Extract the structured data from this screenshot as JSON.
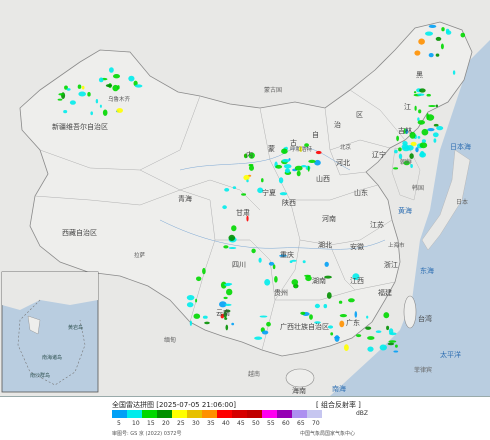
{
  "map": {
    "labels": {
      "xinjiang": "新疆维吾尔自治区",
      "xizang": "西藏自治区",
      "qinghai": "青海",
      "neimenggu_1": "内",
      "neimenggu_2": "蒙",
      "neimenggu_3": "古",
      "neimenggu_4": "自",
      "neimenggu_5": "治",
      "neimenggu_6": "区",
      "heilongjiang_1": "黑",
      "heilongjiang_2": "江",
      "jilin": "吉林",
      "liaoning": "辽宁",
      "gansu": "甘肃",
      "shaanxi": "陕西",
      "shanxi": "山西",
      "hebei": "河北",
      "shandong": "山东",
      "henan": "河南",
      "hubei": "湖北",
      "hunan": "湖南",
      "sichuan": "四川",
      "chongqing": "重庆",
      "guizhou": "贵州",
      "yunnan": "云南",
      "guangxi": "广西壮族自治区",
      "guangdong": "广东",
      "fujian": "福建",
      "jiangxi": "江西",
      "zhejiang": "浙江",
      "jiangsu": "江苏",
      "anhui": "安徽",
      "ningxia": "宁夏",
      "taiwan": "台湾",
      "hainan": "海南",
      "huanghai": "黄海",
      "donghai": "东海",
      "riben_hai": "日本海",
      "taipingyang": "太平洋",
      "nanhai": "南海",
      "mengguo": "蒙古国",
      "chaoxian": "朝鲜",
      "hanguo": "韩国",
      "riben": "日本",
      "feilvbin": "菲律宾",
      "yuenan": "越南",
      "miandian": "缅甸",
      "xinjiang_wlmq": "乌鲁木齐",
      "lasa": "拉萨",
      "beijing": "北京",
      "shanghai": "上海市",
      "huhehaote": "呼和浩特",
      "inset_nanhai": "南海诸岛",
      "inset_huangyan": "黄岩岛",
      "inset_nansha": "南沙群岛"
    }
  },
  "legend": {
    "title": "全国雷达拼图 [2025-07-05 21:06:00]",
    "product": "[ 组合反射率 ]",
    "unit": "dBZ",
    "ticks": [
      "5",
      "10",
      "15",
      "20",
      "25",
      "30",
      "35",
      "40",
      "45",
      "50",
      "55",
      "60",
      "65",
      "70"
    ],
    "colors": [
      "#01a0f6",
      "#00ecec",
      "#00d800",
      "#019000",
      "#ffff00",
      "#e7c000",
      "#ff9000",
      "#ff0000",
      "#d60000",
      "#c00000",
      "#ff00f0",
      "#9600b4",
      "#ad90f0",
      "#c6c6f0"
    ],
    "review": "审图号: GS 京 (2022) 0372号",
    "producer": "中国气象局国家气象中心"
  }
}
